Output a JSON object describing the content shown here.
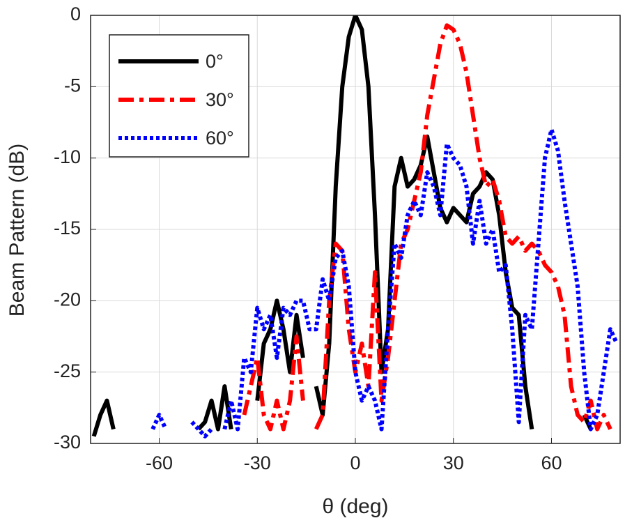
{
  "chart_data": {
    "type": "line",
    "xlabel": "θ (deg)",
    "ylabel": "Beam Pattern (dB)",
    "x": [
      -80,
      -78,
      -76,
      -74,
      -72,
      -70,
      -68,
      -66,
      -64,
      -62,
      -60,
      -58,
      -56,
      -54,
      -52,
      -50,
      -48,
      -46,
      -44,
      -42,
      -40,
      -38,
      -36,
      -34,
      -32,
      -30,
      -28,
      -26,
      -24,
      -22,
      -20,
      -18,
      -16,
      -14,
      -12,
      -10,
      -8,
      -6,
      -4,
      -2,
      0,
      2,
      4,
      6,
      8,
      10,
      12,
      14,
      16,
      18,
      20,
      22,
      24,
      26,
      28,
      30,
      32,
      34,
      36,
      38,
      40,
      42,
      44,
      46,
      48,
      50,
      52,
      54,
      56,
      58,
      60,
      62,
      64,
      66,
      68,
      70,
      72,
      74,
      76,
      78,
      80
    ],
    "series": [
      {
        "name": "0°",
        "color": "#000000",
        "dash": "solid",
        "values": [
          -29.5,
          -28,
          -27,
          -29,
          null,
          null,
          null,
          null,
          null,
          null,
          null,
          null,
          null,
          null,
          null,
          null,
          -29,
          -28.5,
          -27,
          -29,
          -26,
          -29,
          null,
          null,
          null,
          -27,
          -23,
          -22,
          -20,
          -22,
          -25,
          -21,
          -24,
          null,
          -26,
          -28,
          -23,
          -12,
          -5,
          -1.5,
          0,
          -1,
          -5,
          -14,
          -25,
          -22,
          -12,
          -10,
          -12,
          -11.5,
          -10.5,
          -8.5,
          -11,
          -13.5,
          -14.5,
          -13.5,
          -14,
          -14.5,
          -12.5,
          -12,
          -11,
          -11.5,
          -14,
          -18,
          -20.5,
          -21,
          -26,
          -29,
          null,
          null,
          null,
          null,
          null,
          null,
          null,
          -28,
          -29,
          null,
          null,
          null,
          null
        ]
      },
      {
        "name": "30°",
        "color": "#ff0000",
        "dash": "dashdot",
        "values": [
          null,
          null,
          null,
          null,
          null,
          null,
          null,
          null,
          null,
          null,
          null,
          null,
          null,
          null,
          null,
          null,
          null,
          null,
          null,
          null,
          null,
          null,
          null,
          -28,
          -26,
          -24,
          -28,
          -29,
          -27,
          -29,
          -27,
          -22.5,
          -27,
          null,
          -29,
          -28,
          -20,
          -16,
          -16.5,
          -22,
          -25,
          -23,
          -26,
          -18,
          -27,
          -24,
          -20,
          -16,
          -15,
          -13,
          -11,
          -7,
          -4.5,
          -2,
          -0.7,
          -1,
          -2,
          -4,
          -7,
          -10,
          -12,
          -11.5,
          -13,
          -15.5,
          -16,
          -15.5,
          -16.5,
          -16,
          -16.5,
          -17.5,
          -18,
          -19,
          -21,
          -26,
          -28,
          -28.5,
          -27,
          -29,
          -28,
          -29,
          null
        ]
      },
      {
        "name": "60°",
        "color": "#0000ff",
        "dash": "dotted",
        "values": [
          null,
          null,
          null,
          null,
          null,
          null,
          null,
          null,
          null,
          -29,
          -28,
          -29,
          null,
          null,
          null,
          -28.5,
          -29,
          -29.5,
          -29,
          null,
          -29,
          -27,
          -29,
          -24,
          -25,
          -20.5,
          -22,
          -21,
          -24,
          -20.5,
          -21,
          -20,
          -20,
          -22,
          -22,
          -18.5,
          -20,
          -17,
          -16.5,
          -19,
          -25,
          -27,
          -26,
          -27,
          -29,
          -22,
          -16,
          -17,
          -14,
          -13,
          -14,
          -11,
          -12,
          -14,
          -9,
          -10,
          -10.5,
          -12,
          -16,
          -13,
          -16,
          -15,
          -18,
          -17.5,
          -22,
          -28.5,
          -21,
          -22,
          -16,
          -10,
          -8,
          -9.5,
          -13,
          -16,
          -19,
          -25,
          -29,
          -28,
          -25,
          -22,
          -23
        ]
      }
    ],
    "xlim": [
      -81,
      81
    ],
    "ylim": [
      -30,
      0
    ],
    "xticks": [
      -60,
      -30,
      0,
      30,
      60
    ],
    "yticks": [
      0,
      -5,
      -10,
      -15,
      -20,
      -25,
      -30
    ],
    "grid": true,
    "legend": "upper left"
  }
}
